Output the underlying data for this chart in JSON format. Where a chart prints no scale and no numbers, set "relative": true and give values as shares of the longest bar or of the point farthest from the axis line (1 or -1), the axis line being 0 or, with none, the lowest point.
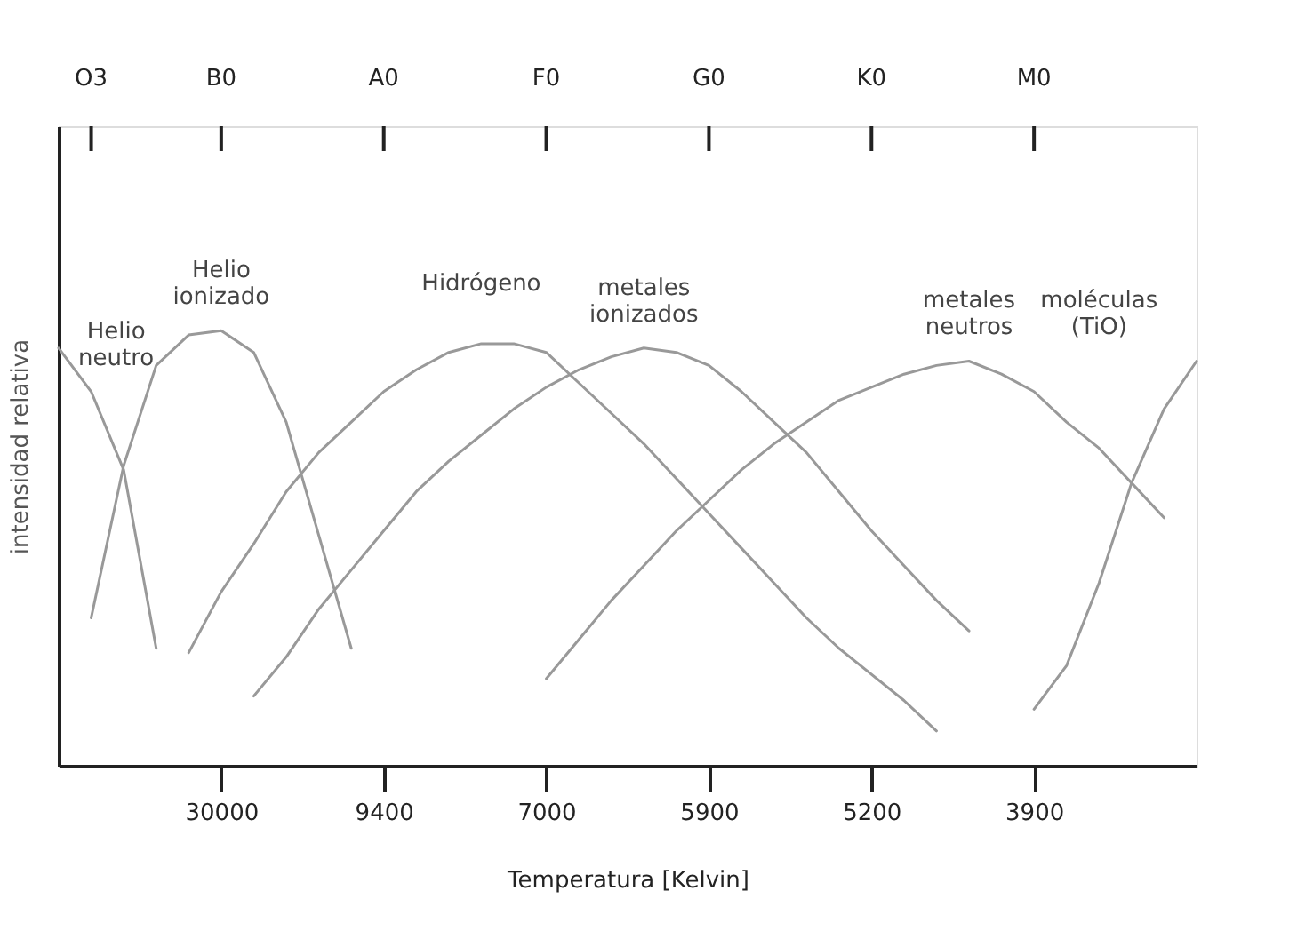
{
  "chart_data": {
    "type": "line",
    "xlabel": "Temperatura [Kelvin]",
    "ylabel": "intensidad relativa",
    "relative": true,
    "grid": false,
    "legend": false,
    "marker": "none",
    "line_style": "solid",
    "categories": [
      null,
      null,
      null,
      null,
      null,
      "30000",
      null,
      null,
      null,
      null,
      "9400",
      null,
      null,
      null,
      null,
      "7000",
      null,
      null,
      null,
      null,
      "5900",
      null,
      null,
      null,
      null,
      "5200",
      null,
      null,
      null,
      null,
      "3900",
      null,
      null,
      null,
      null,
      null
    ],
    "series": [
      {
        "name": "Helio\nneutro",
        "color": "#999999",
        "values": [
          0.96,
          0.86,
          0.68,
          0.27,
          null,
          null,
          null,
          null,
          null,
          null,
          null,
          null,
          null,
          null,
          null,
          null,
          null,
          null,
          null,
          null,
          null,
          null,
          null,
          null,
          null,
          null,
          null,
          null,
          null,
          null,
          null,
          null,
          null,
          null,
          null,
          null
        ]
      },
      {
        "name": "Helio\nionizado",
        "color": "#999999",
        "values": [
          null,
          0.34,
          0.69,
          0.92,
          0.99,
          1.0,
          0.95,
          0.79,
          0.53,
          0.27,
          null,
          null,
          null,
          null,
          null,
          null,
          null,
          null,
          null,
          null,
          null,
          null,
          null,
          null,
          null,
          null,
          null,
          null,
          null,
          null,
          null,
          null,
          null,
          null,
          null,
          null
        ]
      },
      {
        "name": "Hidrógeno",
        "color": "#999999",
        "values": [
          null,
          null,
          null,
          null,
          0.26,
          0.4,
          0.51,
          0.63,
          0.72,
          0.79,
          0.86,
          0.91,
          0.95,
          0.97,
          0.97,
          0.95,
          0.88,
          0.81,
          0.74,
          0.66,
          0.58,
          0.5,
          0.42,
          0.34,
          0.27,
          0.21,
          0.15,
          0.08,
          null,
          null,
          null,
          null,
          null,
          null,
          null,
          null
        ]
      },
      {
        "name": "metales\nionizados",
        "color": "#999999",
        "values": [
          null,
          null,
          null,
          null,
          null,
          null,
          0.16,
          0.25,
          0.36,
          0.45,
          0.54,
          0.63,
          0.7,
          0.76,
          0.82,
          0.87,
          0.91,
          0.94,
          0.96,
          0.95,
          0.92,
          0.86,
          0.79,
          0.72,
          0.63,
          0.54,
          0.46,
          0.38,
          0.31,
          null,
          null,
          null,
          null,
          null,
          null,
          null
        ]
      },
      {
        "name": "metales\nneutros",
        "color": "#999999",
        "values": [
          null,
          null,
          null,
          null,
          null,
          null,
          null,
          null,
          null,
          null,
          null,
          null,
          null,
          null,
          null,
          0.2,
          0.29,
          0.38,
          0.46,
          0.54,
          0.61,
          0.68,
          0.74,
          0.79,
          0.84,
          0.87,
          0.9,
          0.92,
          0.93,
          0.9,
          0.86,
          0.79,
          0.73,
          0.65,
          0.57,
          null
        ]
      },
      {
        "name": "moléculas\n(TiO)",
        "color": "#999999",
        "values": [
          null,
          null,
          null,
          null,
          null,
          null,
          null,
          null,
          null,
          null,
          null,
          null,
          null,
          null,
          null,
          null,
          null,
          null,
          null,
          null,
          null,
          null,
          null,
          null,
          null,
          null,
          null,
          null,
          null,
          null,
          0.13,
          0.23,
          0.42,
          0.65,
          0.82,
          0.93
        ]
      }
    ],
    "annotations": [
      "O3",
      "B0",
      "A0",
      "F0",
      "G0",
      "K0",
      "M0"
    ]
  }
}
